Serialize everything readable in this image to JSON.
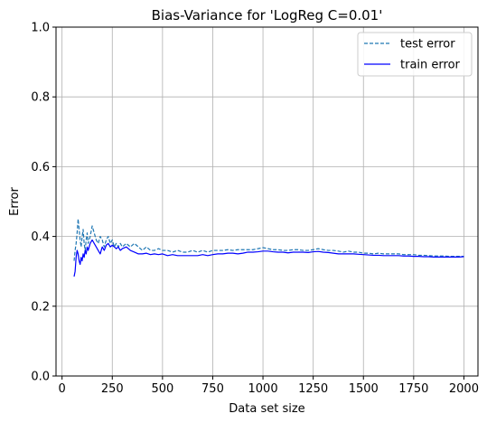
{
  "chart_data": {
    "type": "line",
    "title": "Bias-Variance for 'LogReg C=0.01'",
    "xlabel": "Data set size",
    "ylabel": "Error",
    "xlim": [
      -30,
      2070
    ],
    "ylim": [
      0,
      1
    ],
    "xticks": [
      0,
      250,
      500,
      750,
      1000,
      1250,
      1500,
      1750,
      2000
    ],
    "yticks": [
      0.0,
      0.2,
      0.4,
      0.6,
      0.8,
      1.0
    ],
    "xtick_labels": [
      "0",
      "250",
      "500",
      "750",
      "1000",
      "1250",
      "1500",
      "1750",
      "2000"
    ],
    "ytick_labels": [
      "0.0",
      "0.2",
      "0.4",
      "0.6",
      "0.8",
      "1.0"
    ],
    "grid": true,
    "legend_position": "top-right",
    "series": [
      {
        "name": "test error",
        "color": "#1f77b4",
        "dash": "dashed",
        "x": [
          60,
          65,
          70,
          75,
          80,
          85,
          90,
          95,
          100,
          105,
          110,
          115,
          120,
          125,
          130,
          140,
          150,
          160,
          170,
          180,
          190,
          200,
          210,
          220,
          230,
          240,
          250,
          260,
          270,
          280,
          290,
          300,
          320,
          340,
          360,
          380,
          400,
          420,
          440,
          460,
          480,
          500,
          525,
          550,
          575,
          600,
          625,
          650,
          675,
          700,
          725,
          750,
          775,
          800,
          825,
          850,
          875,
          900,
          925,
          950,
          975,
          1000,
          1025,
          1050,
          1075,
          1100,
          1125,
          1150,
          1175,
          1200,
          1225,
          1250,
          1275,
          1300,
          1325,
          1350,
          1375,
          1400,
          1425,
          1450,
          1475,
          1500,
          1525,
          1550,
          1575,
          1600,
          1625,
          1650,
          1675,
          1700,
          1725,
          1750,
          1775,
          1800,
          1825,
          1850,
          1875,
          1900,
          1925,
          1950,
          1975,
          2000
        ],
        "values": [
          0.33,
          0.36,
          0.38,
          0.41,
          0.45,
          0.42,
          0.39,
          0.37,
          0.4,
          0.42,
          0.38,
          0.36,
          0.39,
          0.41,
          0.38,
          0.4,
          0.43,
          0.41,
          0.39,
          0.38,
          0.4,
          0.39,
          0.37,
          0.39,
          0.4,
          0.38,
          0.39,
          0.37,
          0.38,
          0.37,
          0.38,
          0.37,
          0.38,
          0.37,
          0.38,
          0.37,
          0.36,
          0.37,
          0.36,
          0.36,
          0.365,
          0.36,
          0.36,
          0.355,
          0.36,
          0.355,
          0.355,
          0.36,
          0.355,
          0.36,
          0.355,
          0.36,
          0.36,
          0.36,
          0.362,
          0.36,
          0.362,
          0.362,
          0.362,
          0.362,
          0.365,
          0.368,
          0.365,
          0.362,
          0.362,
          0.36,
          0.36,
          0.362,
          0.362,
          0.36,
          0.36,
          0.362,
          0.365,
          0.362,
          0.36,
          0.36,
          0.358,
          0.355,
          0.358,
          0.355,
          0.355,
          0.352,
          0.352,
          0.35,
          0.352,
          0.35,
          0.35,
          0.35,
          0.35,
          0.348,
          0.348,
          0.348,
          0.346,
          0.346,
          0.345,
          0.344,
          0.344,
          0.344,
          0.343,
          0.343,
          0.343,
          0.343
        ]
      },
      {
        "name": "train error",
        "color": "#0000ff",
        "dash": "solid",
        "x": [
          60,
          65,
          70,
          75,
          80,
          85,
          90,
          95,
          100,
          105,
          110,
          115,
          120,
          125,
          130,
          140,
          150,
          160,
          170,
          180,
          190,
          200,
          210,
          220,
          230,
          240,
          250,
          260,
          270,
          280,
          290,
          300,
          320,
          340,
          360,
          380,
          400,
          420,
          440,
          460,
          480,
          500,
          525,
          550,
          575,
          600,
          625,
          650,
          675,
          700,
          725,
          750,
          775,
          800,
          825,
          850,
          875,
          900,
          925,
          950,
          975,
          1000,
          1025,
          1050,
          1075,
          1100,
          1125,
          1150,
          1175,
          1200,
          1225,
          1250,
          1275,
          1300,
          1325,
          1350,
          1375,
          1400,
          1425,
          1450,
          1475,
          1500,
          1525,
          1550,
          1575,
          1600,
          1625,
          1650,
          1675,
          1700,
          1725,
          1750,
          1775,
          1800,
          1825,
          1850,
          1875,
          1900,
          1925,
          1950,
          1975,
          2000
        ],
        "values": [
          0.285,
          0.3,
          0.34,
          0.36,
          0.35,
          0.33,
          0.32,
          0.34,
          0.33,
          0.35,
          0.34,
          0.36,
          0.35,
          0.37,
          0.36,
          0.38,
          0.39,
          0.38,
          0.37,
          0.36,
          0.35,
          0.37,
          0.36,
          0.375,
          0.38,
          0.37,
          0.375,
          0.37,
          0.365,
          0.37,
          0.36,
          0.365,
          0.37,
          0.36,
          0.355,
          0.35,
          0.35,
          0.352,
          0.348,
          0.35,
          0.348,
          0.35,
          0.345,
          0.348,
          0.345,
          0.345,
          0.345,
          0.345,
          0.345,
          0.348,
          0.345,
          0.348,
          0.35,
          0.35,
          0.352,
          0.352,
          0.35,
          0.352,
          0.355,
          0.355,
          0.356,
          0.358,
          0.358,
          0.356,
          0.355,
          0.355,
          0.353,
          0.355,
          0.355,
          0.355,
          0.354,
          0.356,
          0.357,
          0.355,
          0.354,
          0.352,
          0.35,
          0.35,
          0.35,
          0.35,
          0.349,
          0.348,
          0.347,
          0.346,
          0.346,
          0.345,
          0.345,
          0.345,
          0.345,
          0.344,
          0.344,
          0.343,
          0.343,
          0.342,
          0.342,
          0.341,
          0.341,
          0.341,
          0.341,
          0.341,
          0.341,
          0.342
        ]
      }
    ]
  }
}
